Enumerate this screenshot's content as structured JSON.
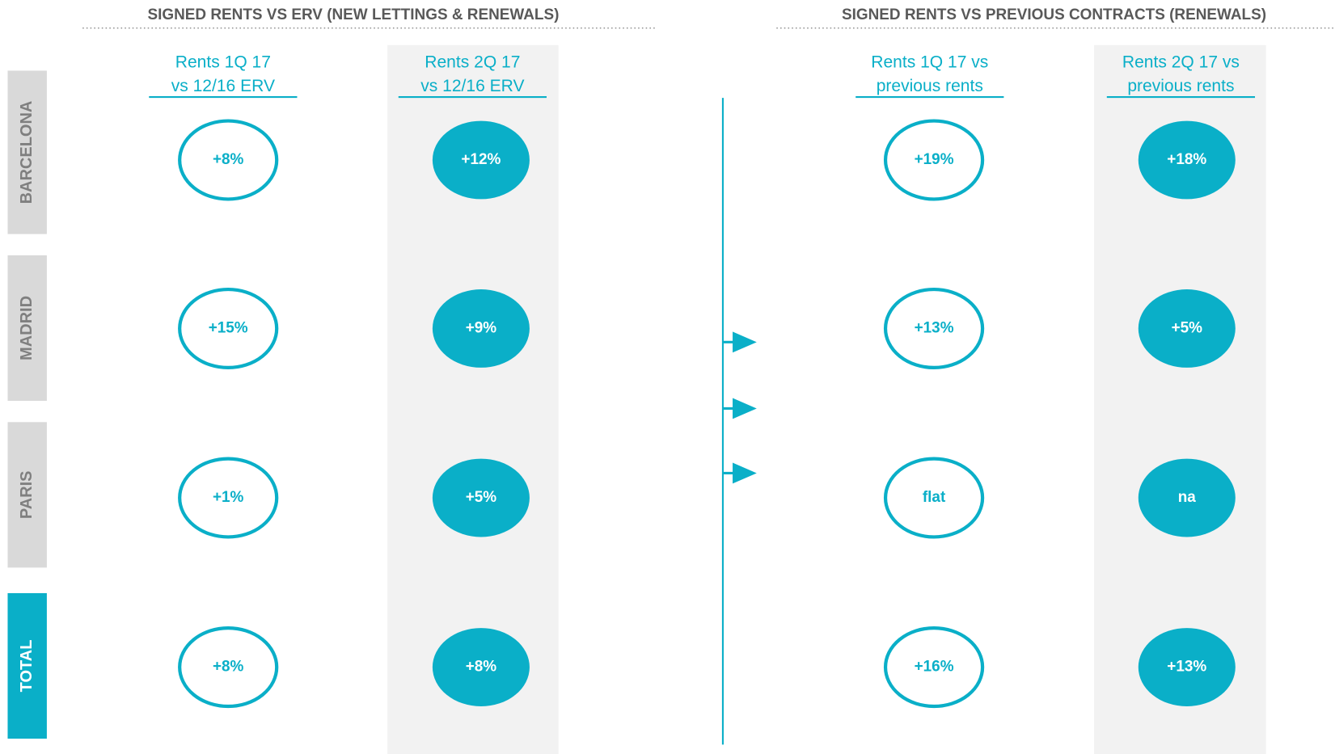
{
  "sections": [
    {
      "title": "SIGNED RENTS VS ERV (NEW LETTINGS & RENEWALS)",
      "columns": [
        {
          "header": [
            "Rents 1Q 17",
            "vs 12/16 ERV"
          ],
          "values": [
            "+8%",
            "+15%",
            "+1%",
            "+8%"
          ]
        },
        {
          "header": [
            "Rents 2Q 17",
            "vs 12/16 ERV"
          ],
          "values": [
            "+12%",
            "+9%",
            "+5%",
            "+8%"
          ]
        }
      ]
    },
    {
      "title": "SIGNED RENTS VS PREVIOUS CONTRACTS (RENEWALS)",
      "columns": [
        {
          "header": [
            "Rents 1Q 17 vs",
            "previous rents"
          ],
          "values": [
            "+19%",
            "+13%",
            "flat",
            "+16%"
          ]
        },
        {
          "header": [
            "Rents 2Q 17 vs",
            "previous rents"
          ],
          "values": [
            "+18%",
            "+5%",
            "na",
            "+13%"
          ]
        }
      ]
    }
  ],
  "rows": [
    "BARCELONA",
    "MADRID",
    "PARIS",
    "TOTAL"
  ]
}
